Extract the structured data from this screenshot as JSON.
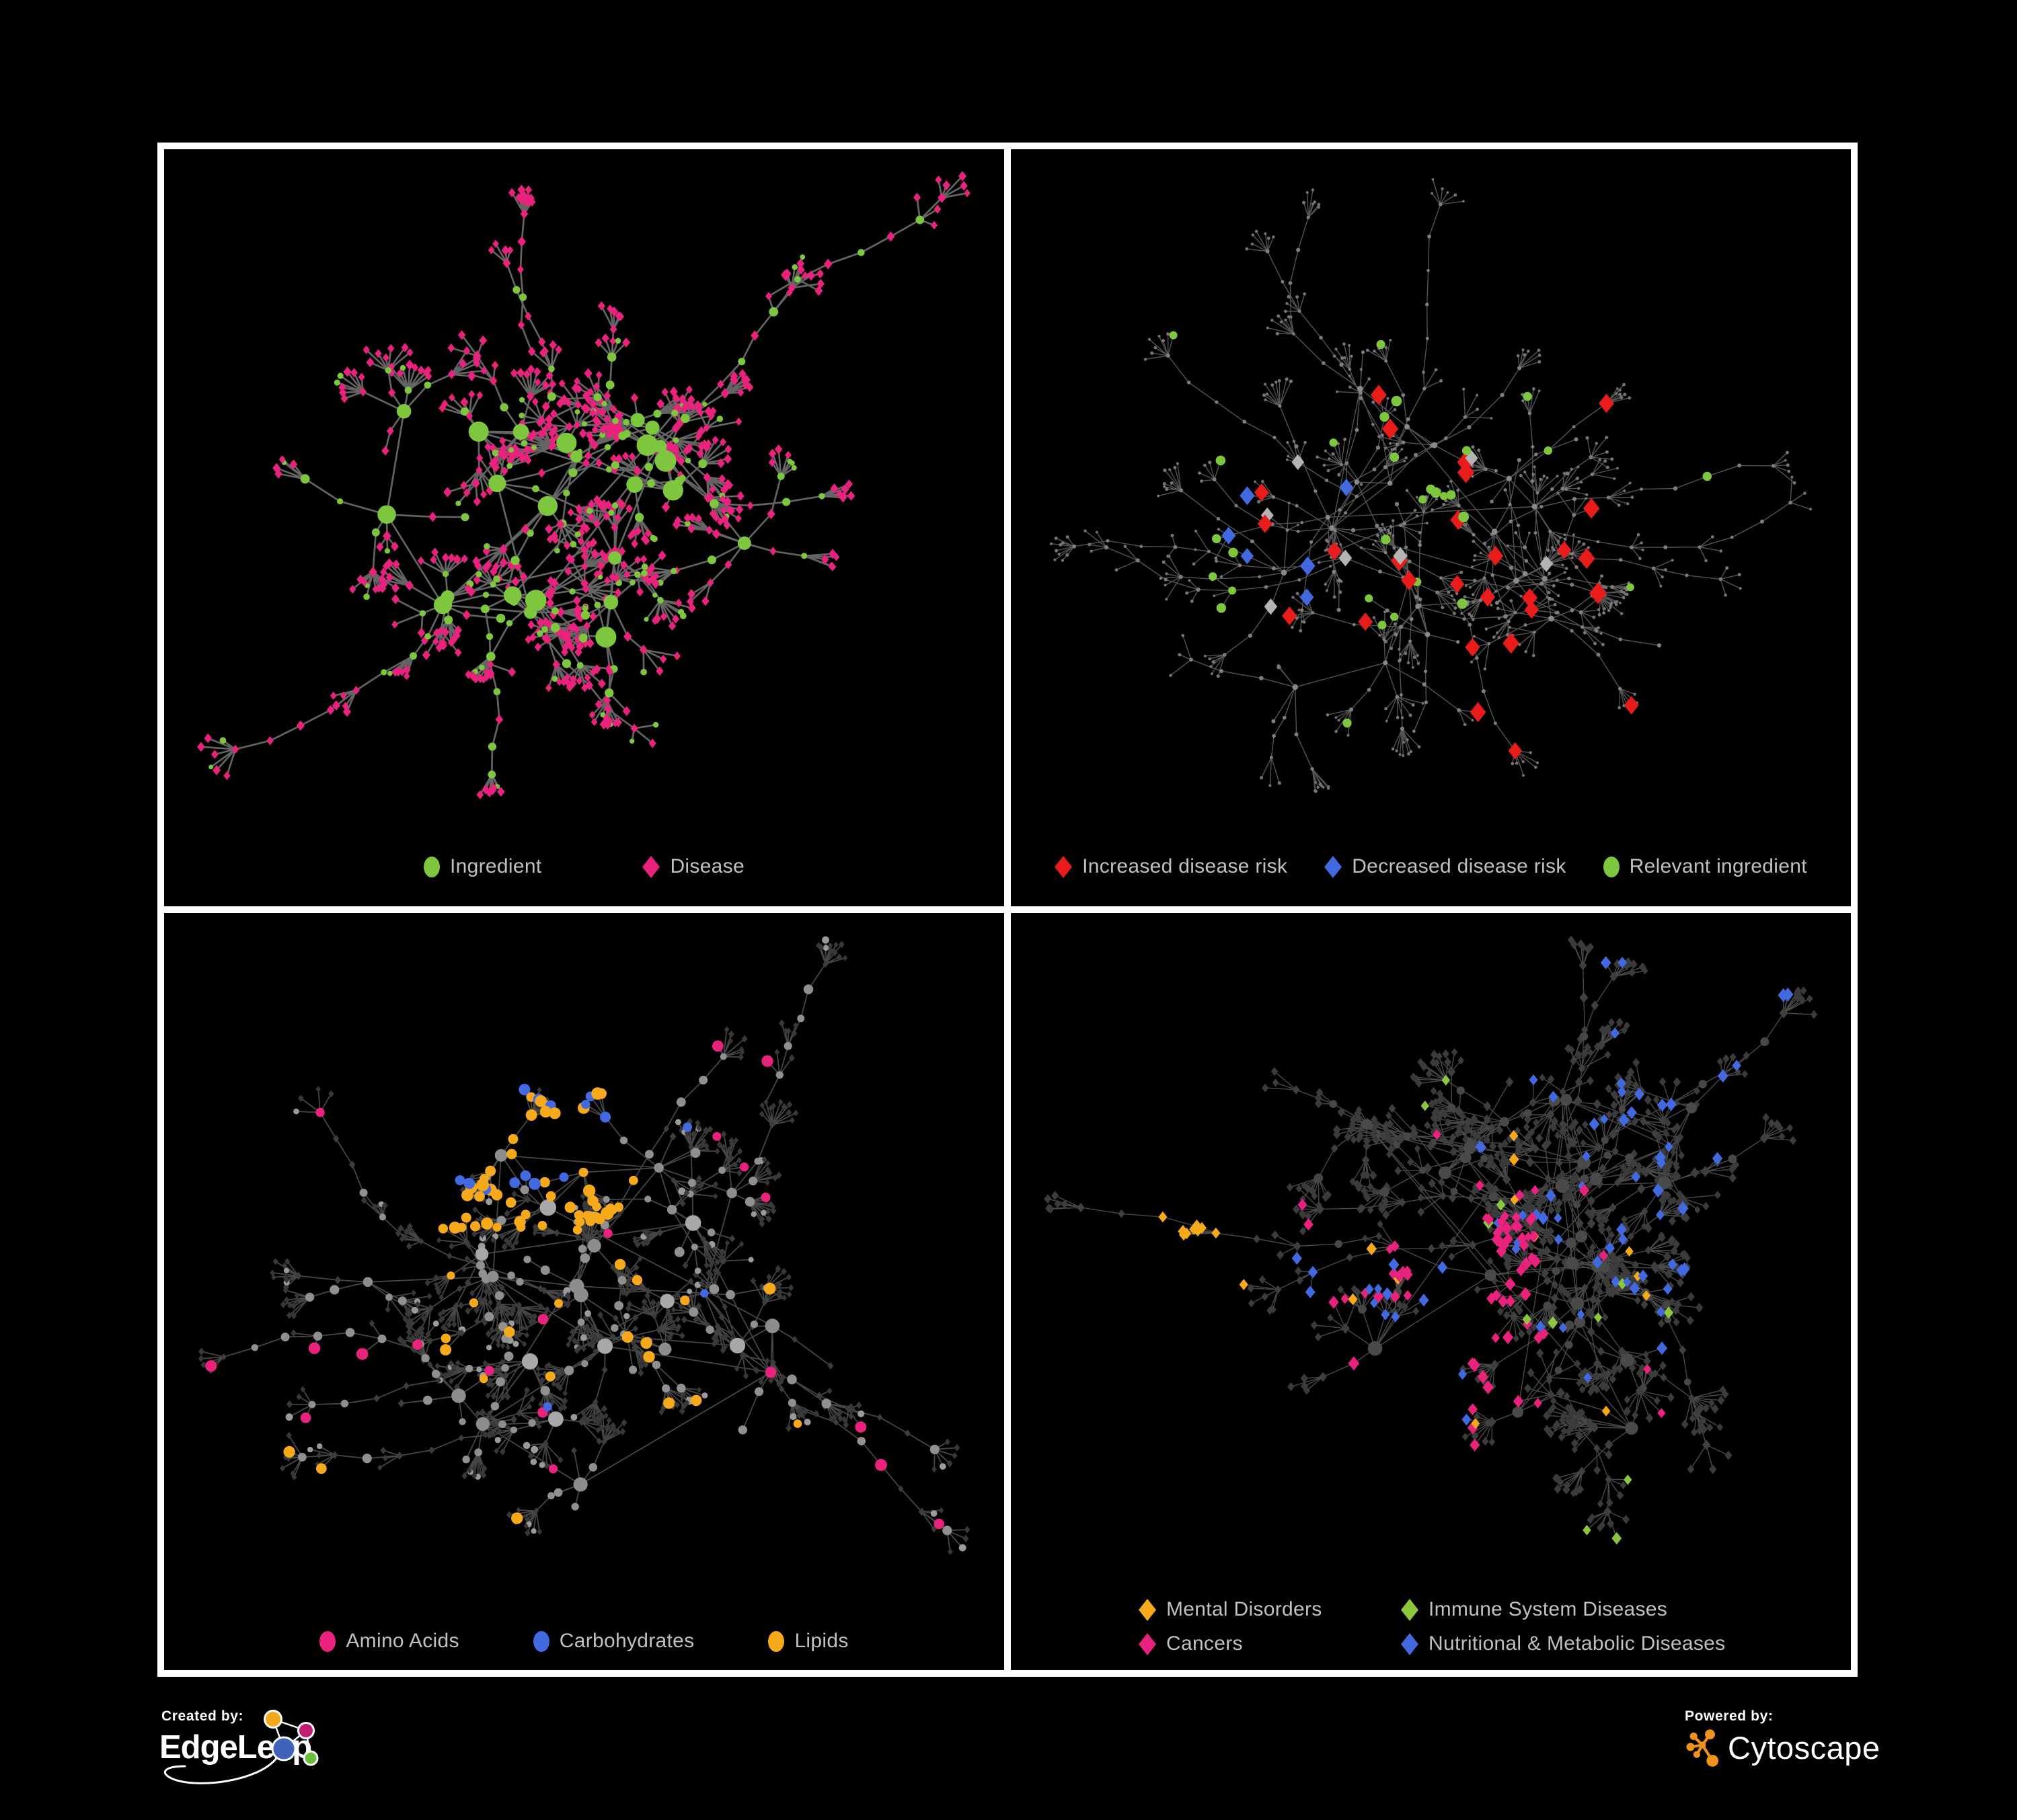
{
  "page": {
    "background": "#000000"
  },
  "colors": {
    "ingredient_green": "#7dc63e",
    "disease_magenta": "#e8227d",
    "risk_red": "#e91c1c",
    "risk_blue": "#4269e0",
    "neutral_gray": "#b4b4b4",
    "lipid_orange": "#f7a91c",
    "immune_green": "#8cc63e",
    "legend_text": "#c0c0c0"
  },
  "panels": [
    {
      "name": "ingredient-disease-network",
      "legend": [
        {
          "shape": "ellipse",
          "color": "#7dc63e",
          "label": "Ingredient"
        },
        {
          "shape": "diamond",
          "color": "#e8227d",
          "label": "Disease"
        }
      ],
      "net": {
        "seed": 41,
        "hubs": 24,
        "hubExtra": 10,
        "spreadX": 330,
        "spreadY": 255,
        "branch": [
          3,
          6
        ],
        "chain": 2,
        "step": 54,
        "fanProb": 0.8,
        "fan": [
          3,
          10
        ],
        "leafLen": 36,
        "tendrils": 10,
        "fit": [
          55,
          40,
          1195,
          960
        ],
        "edge": {
          "color": "#6d6d6d",
          "width": 2.7,
          "opacity": 0.92
        },
        "roles": {
          "hub": [
            {
              "w": 1,
              "shape": "circle",
              "color": "#7dc63e",
              "r": [
                9,
                16
              ]
            }
          ],
          "mid": [
            {
              "w": 0.42,
              "shape": "circle",
              "color": "#7dc63e",
              "r": [
                4.5,
                7
              ]
            },
            {
              "w": 0.58,
              "shape": "diamond",
              "color": "#e8227d",
              "r": [
                5,
                6.5
              ]
            }
          ],
          "leaf": [
            {
              "w": 0.13,
              "shape": "circle",
              "color": "#7dc63e",
              "r": [
                3.5,
                5
              ]
            },
            {
              "w": 0.87,
              "shape": "diamond",
              "color": "#e8227d",
              "r": [
                4.8,
                6.2
              ]
            }
          ]
        },
        "highlights": []
      }
    },
    {
      "name": "disease-risk-network",
      "legend": [
        {
          "shape": "diamond",
          "color": "#e91c1c",
          "label": "Increased disease risk"
        },
        {
          "shape": "diamond",
          "color": "#4269e0",
          "label": "Decreased disease risk"
        },
        {
          "shape": "ellipse",
          "color": "#7dc63e",
          "label": "Relevant ingredient"
        }
      ],
      "net": {
        "seed": 87,
        "hubs": 20,
        "hubExtra": 8,
        "spreadX": 350,
        "spreadY": 260,
        "branch": [
          3,
          6
        ],
        "chain": 3,
        "step": 58,
        "fanProb": 0.72,
        "fan": [
          3,
          9
        ],
        "leafLen": 32,
        "tendrils": 14,
        "fit": [
          60,
          45,
          1190,
          955
        ],
        "edge": {
          "color": "#585858",
          "width": 1.4,
          "opacity": 0.95
        },
        "roles": {
          "hub": [
            {
              "w": 1,
              "shape": "circle",
              "color": "#8a8a8a",
              "r": [
                3.4,
                4.6
              ]
            }
          ],
          "mid": [
            {
              "w": 1,
              "shape": "circle",
              "color": "#7e7e7e",
              "r": [
                2.3,
                3.2
              ]
            }
          ],
          "leaf": [
            {
              "w": 1,
              "shape": "circle",
              "color": "#757575",
              "r": [
                1.9,
                2.6
              ]
            }
          ]
        },
        "highlights": [
          {
            "shape": "diamond",
            "color": "#e91c1c",
            "count": 24,
            "r": [
              10.5,
              13
            ],
            "region": [
              0.26,
              0.28,
              0.72,
              0.66
            ]
          },
          {
            "shape": "diamond",
            "color": "#e91c1c",
            "count": 3,
            "r": [
              10,
              12
            ],
            "region": [
              0.5,
              0.72,
              0.78,
              0.92
            ]
          },
          {
            "shape": "diamond",
            "color": "#4269e0",
            "count": 6,
            "r": [
              9.5,
              11.5
            ],
            "region": [
              0.25,
              0.4,
              0.42,
              0.6
            ]
          },
          {
            "shape": "diamond",
            "color": "#4269e0",
            "count": 3,
            "r": [
              9.5,
              11.5
            ],
            "region": [
              0.82,
              0.14,
              0.99,
              0.36
            ]
          },
          {
            "shape": "diamond",
            "color": "#b4b4b4",
            "count": 7,
            "r": [
              9,
              11
            ],
            "region": [
              0.28,
              0.33,
              0.66,
              0.68
            ]
          },
          {
            "shape": "circle",
            "color": "#7dc63e",
            "count": 22,
            "r": [
              6,
              8
            ],
            "region": [
              0.24,
              0.26,
              0.64,
              0.62
            ]
          },
          {
            "shape": "circle",
            "color": "#7dc63e",
            "count": 8,
            "r": [
              5.5,
              7
            ],
            "region": [
              0.1,
              0.15,
              0.88,
              0.85
            ]
          }
        ]
      }
    },
    {
      "name": "ingredient-categories-network",
      "legend": [
        {
          "shape": "ellipse",
          "color": "#e8227d",
          "label": "Amino Acids"
        },
        {
          "shape": "ellipse",
          "color": "#4269e0",
          "label": "Carbohydrates"
        },
        {
          "shape": "ellipse",
          "color": "#f7a91c",
          "label": "Lipids"
        }
      ],
      "net": {
        "seed": 63,
        "hubs": 26,
        "hubExtra": 11,
        "spreadX": 330,
        "spreadY": 250,
        "branch": [
          3,
          5
        ],
        "chain": 2,
        "step": 52,
        "fanProb": 0.77,
        "fan": [
          4,
          12
        ],
        "leafLen": 32,
        "tendrils": 10,
        "fit": [
          55,
          40,
          1195,
          950
        ],
        "edge": {
          "color": "#525252",
          "width": 1.8,
          "opacity": 0.85
        },
        "roles": {
          "hub": [
            {
              "w": 0.5,
              "shape": "circle",
              "color": "#a8a8a8",
              "r": [
                8,
                13
              ]
            },
            {
              "w": 0.5,
              "shape": "circle",
              "color": "#8d8d8d",
              "r": [
                7,
                11
              ]
            }
          ],
          "mid": [
            {
              "w": 0.55,
              "shape": "circle",
              "color": "#909090",
              "r": [
                5,
                7.5
              ]
            },
            {
              "w": 0.45,
              "shape": "diamond",
              "color": "#3d3d3d",
              "r": [
                4,
                5
              ]
            }
          ],
          "leaf": [
            {
              "w": 0.12,
              "shape": "circle",
              "color": "#9a9a9a",
              "r": [
                4,
                5.5
              ]
            },
            {
              "w": 0.88,
              "shape": "diamond",
              "color": "#383838",
              "r": [
                3.6,
                4.6
              ]
            }
          ]
        },
        "highlights": [
          {
            "shape": "circle",
            "color": "#f7a91c",
            "count": 52,
            "r": [
              6.5,
              9.5
            ],
            "region": [
              0.3,
              0.1,
              0.58,
              0.42
            ]
          },
          {
            "shape": "circle",
            "color": "#f7a91c",
            "count": 22,
            "r": [
              6,
              9
            ],
            "region": [
              0.1,
              0.3,
              0.95,
              0.95
            ]
          },
          {
            "shape": "circle",
            "color": "#4269e0",
            "count": 13,
            "r": [
              6.5,
              9
            ],
            "region": [
              0.33,
              0.13,
              0.53,
              0.37
            ]
          },
          {
            "shape": "circle",
            "color": "#4269e0",
            "count": 3,
            "r": [
              6,
              8
            ],
            "region": [
              0.05,
              0.2,
              0.95,
              0.9
            ]
          },
          {
            "shape": "circle",
            "color": "#e8227d",
            "count": 20,
            "r": [
              6.5,
              9
            ],
            "region": [
              0.04,
              0.06,
              0.97,
              0.97
            ]
          }
        ]
      }
    },
    {
      "name": "disease-categories-network",
      "legend": [
        {
          "shape": "diamond",
          "color": "#f7a91c",
          "label": "Mental Disorders"
        },
        {
          "shape": "diamond",
          "color": "#8cc63e",
          "label": "Immune System Diseases"
        },
        {
          "shape": "diamond",
          "color": "#e8227d",
          "label": "Cancers"
        },
        {
          "shape": "diamond",
          "color": "#4269e0",
          "label": "Nutritional & Metabolic Diseases"
        }
      ],
      "net": {
        "seed": 29,
        "hubs": 26,
        "hubExtra": 11,
        "spreadX": 335,
        "spreadY": 250,
        "branch": [
          3,
          6
        ],
        "chain": 2,
        "step": 52,
        "fanProb": 0.76,
        "fan": [
          4,
          11
        ],
        "leafLen": 31,
        "tendrils": 12,
        "fit": [
          55,
          40,
          1195,
          930
        ],
        "edge": {
          "color": "#565656",
          "width": 1.4,
          "opacity": 0.85
        },
        "roles": {
          "hub": [
            {
              "w": 1,
              "shape": "circle",
              "color": "#4a4a4a",
              "r": [
                7,
                11
              ]
            }
          ],
          "mid": [
            {
              "w": 0.8,
              "shape": "diamond",
              "color": "#3f3f3f",
              "r": [
                5,
                6.5
              ]
            },
            {
              "w": 0.2,
              "shape": "circle",
              "color": "#474747",
              "r": [
                5,
                7
              ]
            }
          ],
          "leaf": [
            {
              "w": 1,
              "shape": "diamond",
              "color": "#3b3b3b",
              "r": [
                4.6,
                5.8
              ]
            }
          ]
        },
        "highlights": [
          {
            "shape": "diamond",
            "color": "#f7a91c",
            "count": 85,
            "r": [
              6,
              8.5
            ],
            "region": [
              0.04,
              0.4,
              0.28,
              0.75
            ]
          },
          {
            "shape": "diamond",
            "color": "#f7a91c",
            "count": 12,
            "r": [
              6,
              8
            ],
            "region": [
              0.3,
              0.05,
              0.95,
              0.95
            ]
          },
          {
            "shape": "diamond",
            "color": "#e8227d",
            "count": 58,
            "r": [
              6,
              8.5
            ],
            "region": [
              0.36,
              0.4,
              0.63,
              0.76
            ]
          },
          {
            "shape": "diamond",
            "color": "#e8227d",
            "count": 12,
            "r": [
              6,
              8
            ],
            "region": [
              0.05,
              0.05,
              0.97,
              0.97
            ]
          },
          {
            "shape": "diamond",
            "color": "#4269e0",
            "count": 58,
            "r": [
              6,
              8.5
            ],
            "region": [
              0.55,
              0.04,
              0.98,
              0.62
            ]
          },
          {
            "shape": "diamond",
            "color": "#4269e0",
            "count": 14,
            "r": [
              6,
              8
            ],
            "region": [
              0.08,
              0.45,
              0.55,
              0.95
            ]
          },
          {
            "shape": "diamond",
            "color": "#8cc63e",
            "count": 12,
            "r": [
              6,
              8
            ],
            "region": [
              0.22,
              0.2,
              0.85,
              0.85
            ]
          }
        ]
      }
    }
  ],
  "footer": {
    "created_by": {
      "label": "Created by:",
      "brand": "EdgeLeap"
    },
    "powered_by": {
      "label": "Powered by:",
      "brand": "Cytoscape"
    },
    "edgeleap_mark": {
      "orange": "#f2a71c",
      "magenta": "#c11d72",
      "blue": "#3e63b8",
      "green": "#67bf3a",
      "stroke": "#ffffff"
    },
    "cytoscape_mark": {
      "orange": "#f0921e"
    }
  }
}
